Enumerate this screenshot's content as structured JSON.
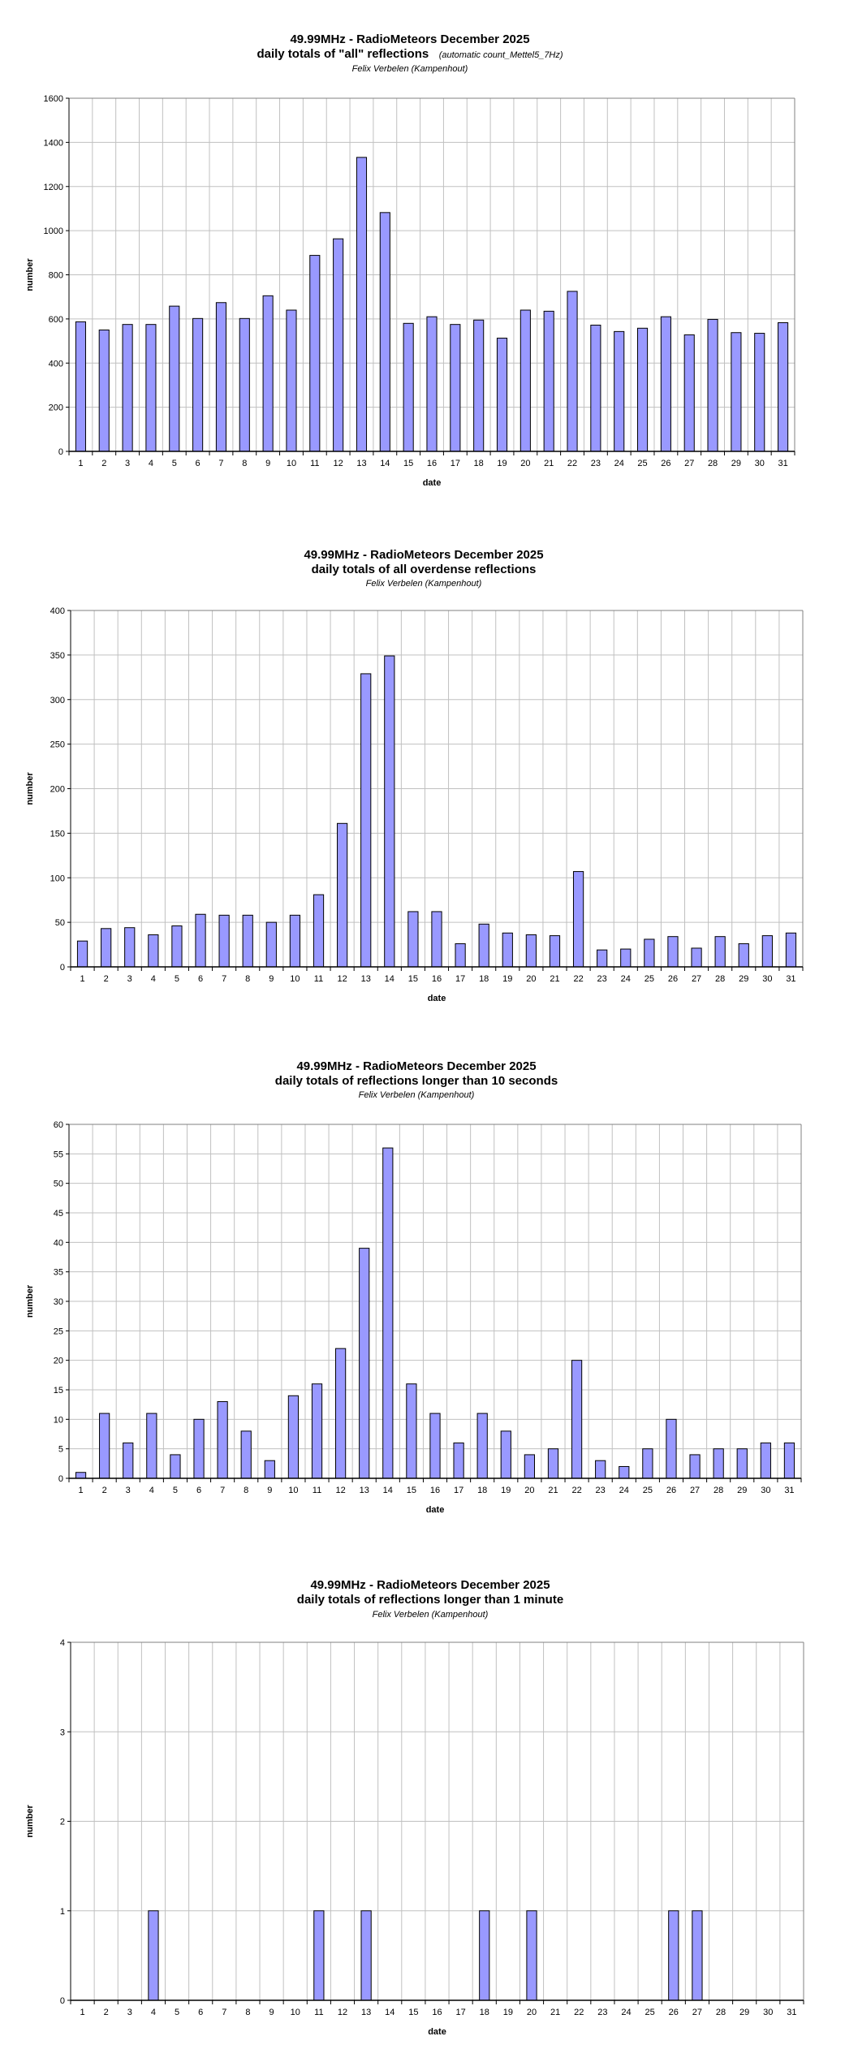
{
  "chart_data": [
    {
      "type": "bar",
      "title": "49.99MHz - RadioMeteors December 2025",
      "subtitle": "daily totals of \"all\" reflections",
      "subtitle_note": "(automatic count_Mettel5_7Hz)",
      "author": "Felix Verbelen (Kampenhout)",
      "xlabel": "date",
      "ylabel": "number",
      "ylim": [
        0,
        1600
      ],
      "ytick_step": 200,
      "grid": true,
      "bar_color": "#9999ff",
      "categories": [
        "1",
        "2",
        "3",
        "4",
        "5",
        "6",
        "7",
        "8",
        "9",
        "10",
        "11",
        "12",
        "13",
        "14",
        "15",
        "16",
        "17",
        "18",
        "19",
        "20",
        "21",
        "22",
        "23",
        "24",
        "25",
        "26",
        "27",
        "28",
        "29",
        "30",
        "31"
      ],
      "values": [
        587,
        550,
        575,
        575,
        658,
        602,
        674,
        602,
        705,
        640,
        888,
        963,
        1332,
        1082,
        580,
        610,
        575,
        595,
        513,
        640,
        635,
        725,
        572,
        543,
        558,
        610,
        528,
        598,
        538,
        535,
        583
      ]
    },
    {
      "type": "bar",
      "title": "49.99MHz - RadioMeteors December 2025",
      "subtitle": "daily totals of all overdense reflections",
      "author": "Felix Verbelen (Kampenhout)",
      "xlabel": "date",
      "ylabel": "number",
      "ylim": [
        0,
        400
      ],
      "ytick_step": 50,
      "grid": true,
      "bar_color": "#9999ff",
      "categories": [
        "1",
        "2",
        "3",
        "4",
        "5",
        "6",
        "7",
        "8",
        "9",
        "10",
        "11",
        "12",
        "13",
        "14",
        "15",
        "16",
        "17",
        "18",
        "19",
        "20",
        "21",
        "22",
        "23",
        "24",
        "25",
        "26",
        "27",
        "28",
        "29",
        "30",
        "31"
      ],
      "values": [
        29,
        43,
        44,
        36,
        46,
        59,
        58,
        58,
        50,
        58,
        81,
        161,
        329,
        349,
        62,
        62,
        26,
        48,
        38,
        36,
        35,
        107,
        19,
        20,
        31,
        34,
        21,
        34,
        26,
        35,
        38
      ]
    },
    {
      "type": "bar",
      "title": "49.99MHz - RadioMeteors December 2025",
      "subtitle": "daily totals of reflections longer than 10 seconds",
      "author": "Felix Verbelen (Kampenhout)",
      "xlabel": "date",
      "ylabel": "number",
      "ylim": [
        0,
        60
      ],
      "ytick_step": 5,
      "grid": true,
      "bar_color": "#9999ff",
      "categories": [
        "1",
        "2",
        "3",
        "4",
        "5",
        "6",
        "7",
        "8",
        "9",
        "10",
        "11",
        "12",
        "13",
        "14",
        "15",
        "16",
        "17",
        "18",
        "19",
        "20",
        "21",
        "22",
        "23",
        "24",
        "25",
        "26",
        "27",
        "28",
        "29",
        "30",
        "31"
      ],
      "values": [
        1,
        11,
        6,
        11,
        4,
        10,
        13,
        8,
        3,
        14,
        16,
        22,
        39,
        56,
        16,
        11,
        6,
        11,
        8,
        4,
        5,
        20,
        3,
        2,
        5,
        10,
        4,
        5,
        5,
        6,
        6
      ]
    },
    {
      "type": "bar",
      "title": "49.99MHz - RadioMeteors December 2025",
      "subtitle": "daily totals of reflections longer than 1 minute",
      "author": "Felix Verbelen (Kampenhout)",
      "xlabel": "date",
      "ylabel": "number",
      "ylim": [
        0,
        4
      ],
      "ytick_step": 1,
      "grid": true,
      "bar_color": "#9999ff",
      "categories": [
        "1",
        "2",
        "3",
        "4",
        "5",
        "6",
        "7",
        "8",
        "9",
        "10",
        "11",
        "12",
        "13",
        "14",
        "15",
        "16",
        "17",
        "18",
        "19",
        "20",
        "21",
        "22",
        "23",
        "24",
        "25",
        "26",
        "27",
        "28",
        "29",
        "30",
        "31"
      ],
      "values": [
        0,
        0,
        0,
        1,
        0,
        0,
        0,
        0,
        0,
        0,
        1,
        0,
        1,
        0,
        0,
        0,
        0,
        1,
        0,
        1,
        0,
        0,
        0,
        0,
        0,
        1,
        1,
        0,
        0,
        0,
        0
      ]
    }
  ]
}
